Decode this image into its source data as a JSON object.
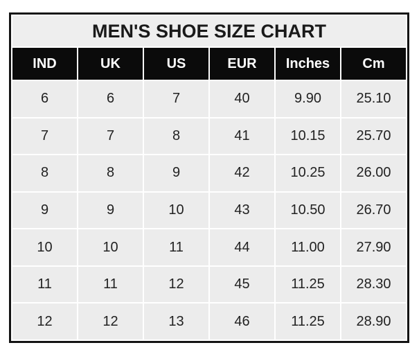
{
  "chart_data": {
    "type": "table",
    "title": "MEN'S SHOE SIZE CHART",
    "columns": [
      "IND",
      "UK",
      "US",
      "EUR",
      "Inches",
      "Cm"
    ],
    "rows": [
      [
        "6",
        "6",
        "7",
        "40",
        "9.90",
        "25.10"
      ],
      [
        "7",
        "7",
        "8",
        "41",
        "10.15",
        "25.70"
      ],
      [
        "8",
        "8",
        "9",
        "42",
        "10.25",
        "26.00"
      ],
      [
        "9",
        "9",
        "10",
        "43",
        "10.50",
        "26.70"
      ],
      [
        "10",
        "10",
        "11",
        "44",
        "11.00",
        "27.90"
      ],
      [
        "11",
        "11",
        "12",
        "45",
        "11.25",
        "28.30"
      ],
      [
        "12",
        "12",
        "13",
        "46",
        "11.25",
        "28.90"
      ]
    ]
  },
  "colors": {
    "header_bg": "#0b0b0b",
    "header_text": "#ffffff",
    "title_bg": "#eeeeee",
    "cell_bg": "#ececec",
    "border": "#141414",
    "data_text": "#222222"
  }
}
